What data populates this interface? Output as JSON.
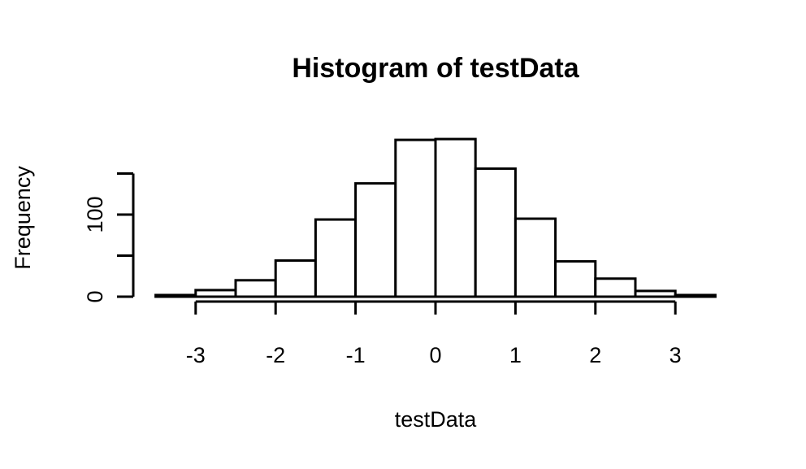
{
  "chart_data": {
    "type": "bar",
    "title": "Histogram of testData",
    "xlabel": "testData",
    "ylabel": "Frequency",
    "bins": [
      {
        "start": -3.5,
        "end": -3.0,
        "count": 2
      },
      {
        "start": -3.0,
        "end": -2.5,
        "count": 8
      },
      {
        "start": -2.5,
        "end": -2.0,
        "count": 20
      },
      {
        "start": -2.0,
        "end": -1.5,
        "count": 44
      },
      {
        "start": -1.5,
        "end": -1.0,
        "count": 94
      },
      {
        "start": -1.0,
        "end": -0.5,
        "count": 138
      },
      {
        "start": -0.5,
        "end": 0.0,
        "count": 191
      },
      {
        "start": 0.0,
        "end": 0.5,
        "count": 192
      },
      {
        "start": 0.5,
        "end": 1.0,
        "count": 156
      },
      {
        "start": 1.0,
        "end": 1.5,
        "count": 95
      },
      {
        "start": 1.5,
        "end": 2.0,
        "count": 43
      },
      {
        "start": 2.0,
        "end": 2.5,
        "count": 22
      },
      {
        "start": 2.5,
        "end": 3.0,
        "count": 7
      },
      {
        "start": 3.0,
        "end": 3.5,
        "count": 2
      }
    ],
    "xticks": [
      "-3",
      "-2",
      "-1",
      "0",
      "1",
      "2",
      "3"
    ],
    "xtick_values": [
      -3,
      -2,
      -1,
      0,
      1,
      2,
      3
    ],
    "yticks": [
      "0",
      "100"
    ],
    "ytick_values": [
      0,
      100
    ],
    "ytick_marks": [
      0,
      50,
      100,
      150
    ],
    "xlim": [
      -3.5,
      3.5
    ],
    "ylim": [
      0,
      200
    ],
    "grid": false
  }
}
